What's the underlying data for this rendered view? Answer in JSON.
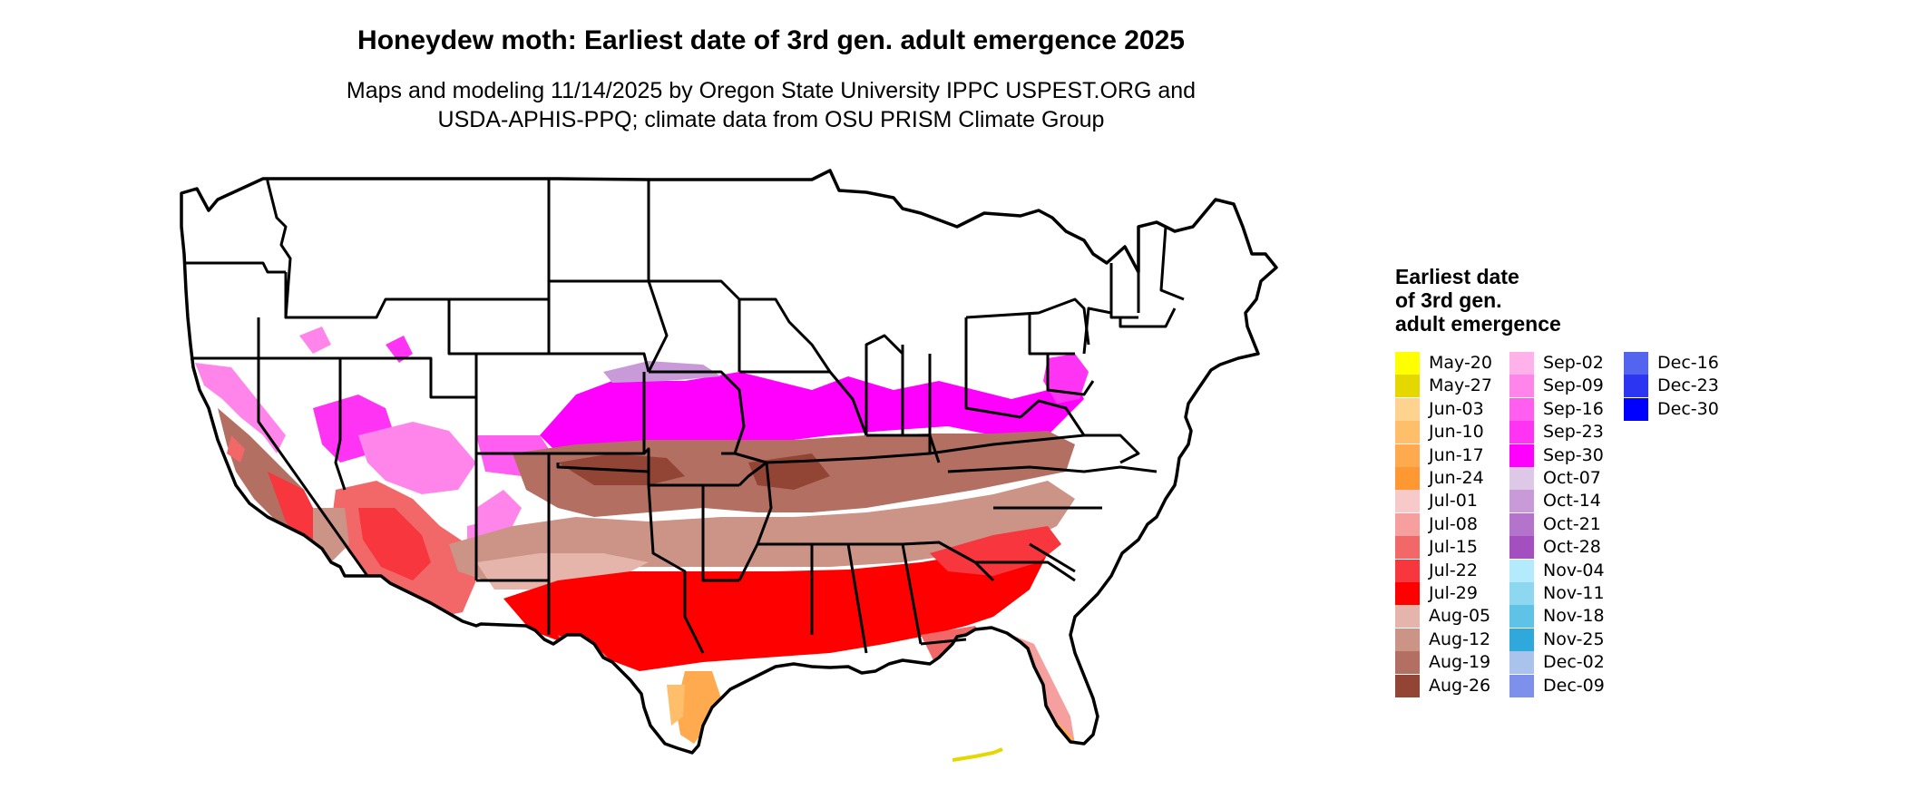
{
  "figure": {
    "title": "Honeydew moth: Earliest date of 3rd gen. adult emergence 2025",
    "subtitle_lines": [
      "Maps and modeling 11/14/2025 by Oregon State University IPPC USPEST.ORG and",
      "USDA-APHIS-PPQ; climate data from OSU PRISM Climate Group"
    ]
  },
  "legend": {
    "title_lines": [
      "Earliest date",
      "of 3rd gen.",
      "adult emergence"
    ],
    "columns": [
      [
        {
          "label": "May-20",
          "color": "#ffff00"
        },
        {
          "label": "May-27",
          "color": "#e5d800"
        },
        {
          "label": "Jun-03",
          "color": "#ffd38f"
        },
        {
          "label": "Jun-10",
          "color": "#ffbe6a"
        },
        {
          "label": "Jun-17",
          "color": "#ffaa4f"
        },
        {
          "label": "Jun-24",
          "color": "#ff9733"
        },
        {
          "label": "Jul-01",
          "color": "#f7c9c9"
        },
        {
          "label": "Jul-08",
          "color": "#f59f9f"
        },
        {
          "label": "Jul-15",
          "color": "#f26868"
        },
        {
          "label": "Jul-22",
          "color": "#f7363e"
        },
        {
          "label": "Jul-29",
          "color": "#ff0000"
        },
        {
          "label": "Aug-05",
          "color": "#e5b4ab"
        },
        {
          "label": "Aug-12",
          "color": "#cc9387"
        },
        {
          "label": "Aug-19",
          "color": "#b26f62"
        },
        {
          "label": "Aug-26",
          "color": "#934535"
        }
      ],
      [
        {
          "label": "Sep-02",
          "color": "#ffb1ea"
        },
        {
          "label": "Sep-09",
          "color": "#ff85eb"
        },
        {
          "label": "Sep-16",
          "color": "#ff5ef0"
        },
        {
          "label": "Sep-23",
          "color": "#ff33f4"
        },
        {
          "label": "Sep-30",
          "color": "#ff00ff"
        },
        {
          "label": "Oct-07",
          "color": "#dec8e8"
        },
        {
          "label": "Oct-14",
          "color": "#c89bd8"
        },
        {
          "label": "Oct-21",
          "color": "#b574cb"
        },
        {
          "label": "Oct-28",
          "color": "#a44fc0"
        },
        {
          "label": "Nov-04",
          "color": "#b3eafc"
        },
        {
          "label": "Nov-11",
          "color": "#8dd8f0"
        },
        {
          "label": "Nov-18",
          "color": "#5fc3e8"
        },
        {
          "label": "Nov-25",
          "color": "#2fa8dc"
        },
        {
          "label": "Dec-02",
          "color": "#a9c3ec"
        },
        {
          "label": "Dec-09",
          "color": "#7d90ec"
        }
      ],
      [
        {
          "label": "Dec-16",
          "color": "#5364ee"
        },
        {
          "label": "Dec-23",
          "color": "#2b35f2"
        },
        {
          "label": "Dec-30",
          "color": "#0000ff"
        }
      ]
    ]
  }
}
